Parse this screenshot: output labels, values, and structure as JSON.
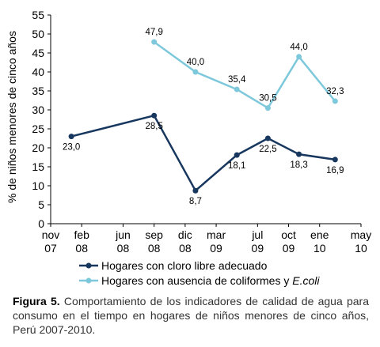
{
  "chart_data": {
    "type": "line",
    "ylabel": "% de niños menores de cinco años",
    "xlabel": "",
    "ylim": [
      0,
      55
    ],
    "yticks": [
      0,
      5,
      10,
      15,
      20,
      25,
      30,
      35,
      40,
      45,
      50,
      55
    ],
    "x_tick_months": [
      0,
      3,
      7,
      10,
      13,
      16,
      20,
      23,
      26,
      30
    ],
    "x_tick_labels": [
      [
        "nov",
        "07"
      ],
      [
        "feb",
        "08"
      ],
      [
        "jun",
        "08"
      ],
      [
        "sep",
        "08"
      ],
      [
        "dic",
        "08"
      ],
      [
        "mar",
        "09"
      ],
      [
        "jul",
        "09"
      ],
      [
        "oct",
        "09"
      ],
      [
        "ene",
        "10"
      ],
      [
        "may",
        "10"
      ]
    ],
    "grid": false,
    "legend_position": "bottom",
    "series": [
      {
        "name_parts": [
          "Hogares con cloro libre adecuado",
          ""
        ],
        "color": "#17375e",
        "x_months": [
          2,
          10,
          14,
          18,
          21,
          24,
          27.5
        ],
        "values": [
          23.0,
          28.5,
          8.7,
          18.1,
          22.5,
          18.3,
          16.9
        ],
        "labels": [
          "23,0",
          "28,5",
          "8,7",
          "18,1",
          "22,5",
          "18,3",
          "16,9"
        ],
        "label_pos": [
          "below",
          "below",
          "below",
          "below",
          "below",
          "below",
          "below"
        ]
      },
      {
        "name_parts": [
          "Hogares con ausencia de coliformes y ",
          "E.coli"
        ],
        "color": "#7ec8dc",
        "x_months": [
          10,
          14,
          18,
          21,
          24,
          27.5
        ],
        "values": [
          47.9,
          40.0,
          35.4,
          30.5,
          44.0,
          32.3
        ],
        "labels": [
          "47,9",
          "40,0",
          "35,4",
          "30,5",
          "44,0",
          "32,3"
        ],
        "label_pos": [
          "above",
          "above",
          "above",
          "above",
          "above",
          "above"
        ]
      }
    ]
  },
  "caption": {
    "label": "Figura 5.",
    "text": " Comportamiento de los indicadores de calidad de agua para consumo en el tiempo en hogares de niños menores de cinco años, Perú 2007-2010."
  }
}
